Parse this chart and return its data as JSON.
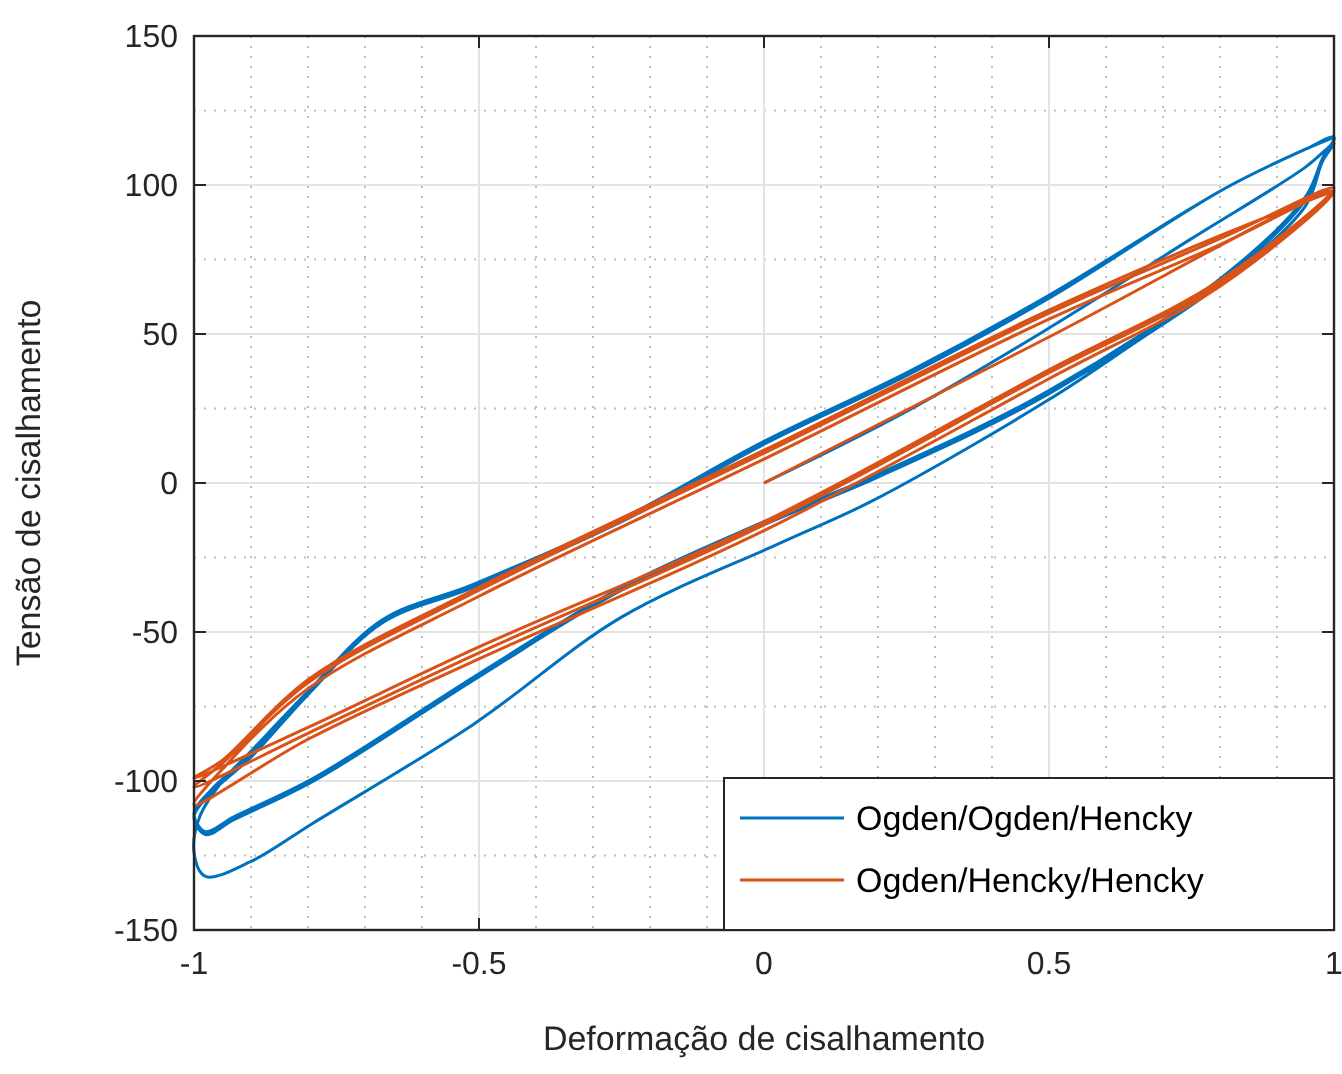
{
  "chart_data": {
    "type": "line",
    "xlabel": "Deformação de cisalhamento",
    "ylabel": "Tensão de cisalhamento",
    "xlim": [
      -1,
      1
    ],
    "xticks": [
      -1,
      -0.5,
      0,
      0.5,
      1
    ],
    "ylim": [
      -150,
      150
    ],
    "yticks": [
      -150,
      -100,
      -50,
      0,
      50,
      100,
      150
    ],
    "grid": true,
    "legend": "bottom right",
    "line_style": "solid",
    "series": [
      {
        "name": "Ogden/Ogden/Hencky",
        "color": "#0072bd",
        "x": [
          0,
          0.25,
          0.5,
          0.75,
          0.95,
          1,
          0.98,
          0.95,
          0.81,
          0.65,
          0.5,
          0.19,
          0.03,
          -0.25,
          -0.51,
          -0.79,
          -0.9,
          -0.98,
          -1,
          -0.99,
          -0.95,
          -0.9,
          -0.8,
          -0.67,
          -0.51,
          -0.25,
          0,
          0.25,
          0.5,
          0.81,
          0.95,
          1,
          0.98,
          0.95,
          0.81,
          0.5,
          0.2,
          0,
          -0.25,
          -0.5,
          -0.79,
          -0.93,
          -0.98,
          -1,
          -0.97,
          -0.9,
          -0.8,
          -0.67,
          -0.51,
          -0.25,
          0,
          0.25,
          0.5,
          0.81,
          0.95,
          1,
          0.98,
          0.95,
          0.81,
          0.5,
          0.2,
          0,
          -0.25,
          -0.5,
          -0.79,
          -0.93,
          -0.98,
          -1,
          -0.97,
          -0.9,
          -0.8,
          -0.67,
          -0.51,
          -0.25,
          0,
          0.25,
          0.5,
          0.81,
          0.95,
          1
        ],
        "values": [
          0,
          24,
          52,
          82,
          106,
          114,
          108,
          93,
          68,
          47,
          28,
          -6,
          -20,
          -45,
          -81,
          -114,
          -127,
          -132,
          -124,
          -112,
          -100,
          -90,
          -70,
          -46,
          -34,
          -12,
          14,
          37,
          63,
          99,
          112,
          116,
          108,
          95,
          69,
          30,
          2,
          -14,
          -36,
          -65,
          -100,
          -113,
          -118,
          -112,
          -104,
          -92,
          -71,
          -47,
          -35,
          -13,
          13,
          36,
          62,
          99,
          112,
          116,
          109,
          96,
          70,
          31,
          3,
          -13,
          -35,
          -64,
          -99,
          -112,
          -117,
          -111,
          -103,
          -91,
          -71,
          -47,
          -35,
          -13,
          13,
          36,
          62,
          99,
          112,
          116
        ]
      },
      {
        "name": "Ogden/Hencky/Hencky",
        "color": "#d95319",
        "x": [
          0,
          0.5,
          1,
          0.8,
          0.5,
          0,
          -0.5,
          -0.8,
          -1,
          -0.95,
          -0.8,
          -0.5,
          0,
          0.5,
          0.8,
          1,
          0.8,
          0.5,
          0,
          -0.5,
          -0.8,
          -1,
          -0.95,
          -0.8,
          -0.5,
          0,
          0.5,
          0.8,
          1,
          0.8,
          0.5,
          0,
          -0.5,
          -0.8,
          -1,
          -0.95,
          -0.8,
          -0.5,
          0,
          0.5,
          0.8,
          1
        ],
        "values": [
          0,
          49,
          98,
          66,
          35,
          -16,
          -59,
          -86,
          -108,
          -96,
          -69,
          -38,
          8,
          55,
          80,
          98,
          67,
          37,
          -14,
          -57,
          -84,
          -102,
          -94,
          -67,
          -36,
          10,
          57,
          82,
          99,
          68,
          38,
          -13,
          -55,
          -82,
          -99,
          -93,
          -66,
          -35,
          11,
          58,
          83,
          98
        ]
      }
    ]
  }
}
